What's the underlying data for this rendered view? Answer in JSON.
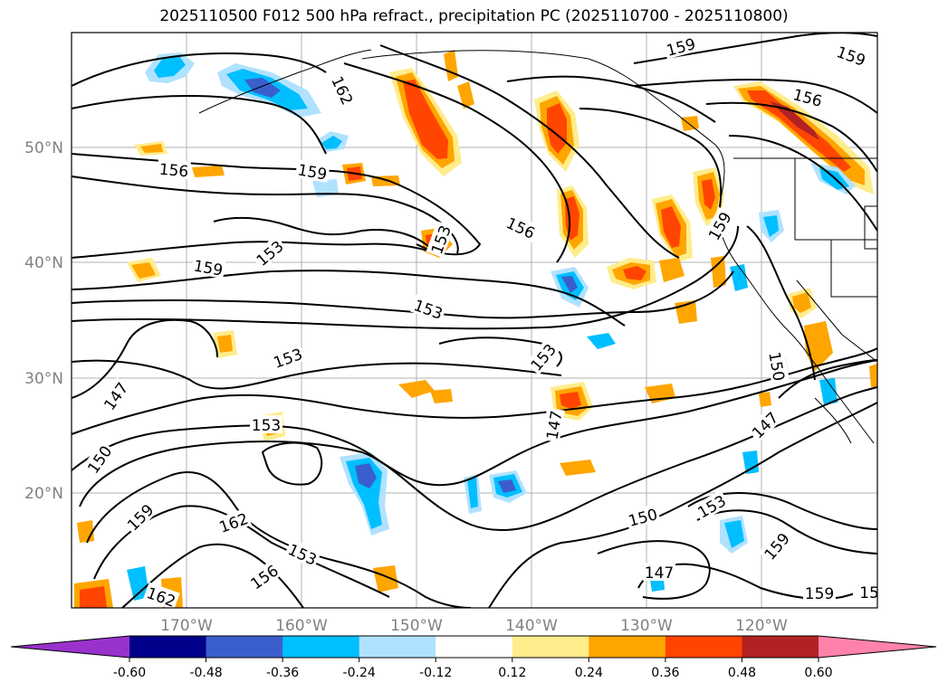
{
  "title": "2025110500 F012 500 hPa refract., precipitation PC (2025110700 - 2025110800)",
  "chart_data": {
    "type": "map",
    "lat_labels": [
      "50°N",
      "40°N",
      "30°N",
      "20°N"
    ],
    "lon_labels": [
      "170°W",
      "160°W",
      "150°W",
      "140°W",
      "130°W",
      "120°W"
    ],
    "colorbar": {
      "levels": [
        "-0.60",
        "-0.48",
        "-0.36",
        "-0.24",
        "-0.12",
        "0.12",
        "0.24",
        "0.36",
        "0.48",
        "0.60"
      ],
      "colors": {
        "neg_extend": "#9932cc",
        "n1": "#00008b",
        "n2": "#3a5fcd",
        "n3": "#00bfff",
        "n4": "#b0e2ff",
        "zero": "#ffffff",
        "p1": "#ffec8b",
        "p2": "#ffa500",
        "p3": "#ff4500",
        "p4": "#b22222",
        "pos_extend": "#ff82ab"
      }
    },
    "contour_labels": [
      "159",
      "159",
      "162",
      "156",
      "156",
      "159",
      "156",
      "153",
      "159",
      "153",
      "156",
      "159",
      "153",
      "153",
      "153",
      "150",
      "147",
      "153",
      "147",
      "150",
      "147",
      "159",
      "162",
      "153",
      "150",
      "153",
      "156",
      "159",
      "147",
      "162",
      "159",
      "15"
    ]
  }
}
